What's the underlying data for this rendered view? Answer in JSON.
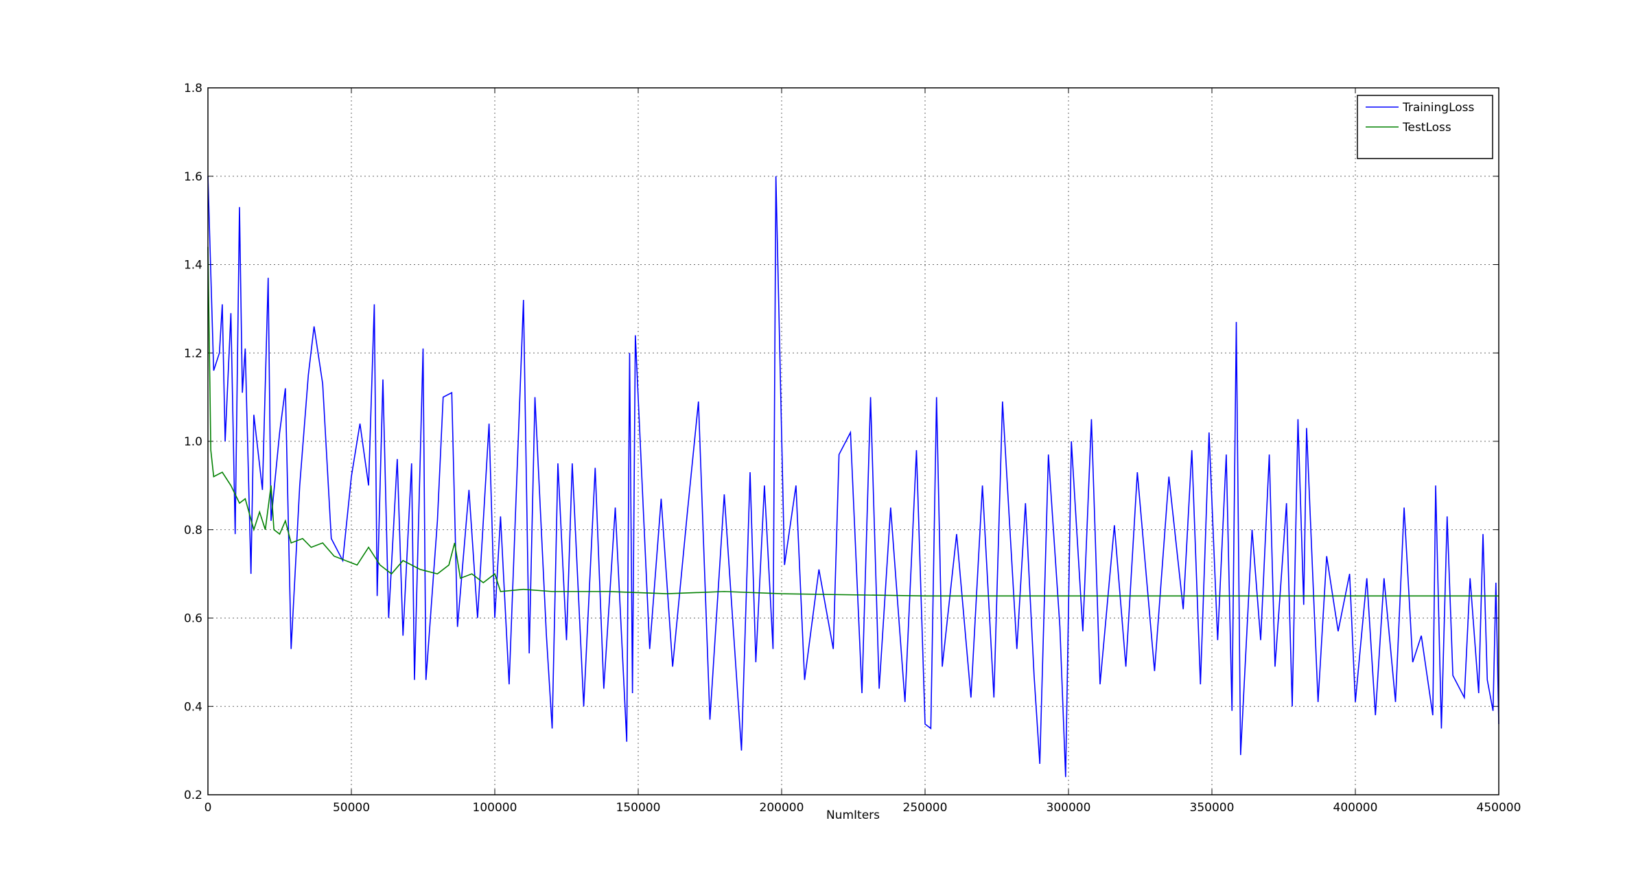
{
  "chart_data": {
    "type": "line",
    "xlabel": "NumIters",
    "xlim": [
      0,
      450000
    ],
    "xticks": [
      0,
      50000,
      100000,
      150000,
      200000,
      250000,
      300000,
      350000,
      400000,
      450000
    ],
    "ylim": [
      0.2,
      1.8
    ],
    "yticks": [
      0.2,
      0.4,
      0.6,
      0.8,
      {
        "value": 1,
        "label": "1.0"
      },
      1.2,
      1.4,
      1.6,
      1.8
    ],
    "grid": true,
    "legend": "upper right",
    "series": [
      {
        "name": "TrainingLoss",
        "color": "#0000ff",
        "x": [
          0,
          2000,
          4000,
          5000,
          6000,
          8000,
          9500,
          11000,
          12000,
          13000,
          15000,
          16000,
          19000,
          21000,
          22000,
          25000,
          27000,
          29000,
          32000,
          35000,
          37000,
          40000,
          43000,
          47000,
          50000,
          53000,
          56000,
          58000,
          59000,
          61000,
          63000,
          66000,
          68000,
          71000,
          72000,
          75000,
          76000,
          80000,
          82000,
          85000,
          87000,
          91000,
          94000,
          98000,
          100000,
          102000,
          105000,
          110000,
          112000,
          114000,
          118000,
          120000,
          122000,
          125000,
          127000,
          131000,
          135000,
          138000,
          142000,
          146000,
          147000,
          148000,
          149000,
          154000,
          158000,
          162000,
          167000,
          171000,
          175000,
          180000,
          186000,
          189000,
          191000,
          194000,
          197000,
          198000,
          201000,
          205000,
          208000,
          213000,
          218000,
          220000,
          224000,
          228000,
          231000,
          234000,
          238000,
          243000,
          247000,
          250000,
          252000,
          254000,
          256000,
          261000,
          266000,
          270000,
          274000,
          277000,
          282000,
          285000,
          288000,
          290000,
          293000,
          297000,
          299000,
          301000,
          305000,
          308000,
          311000,
          316000,
          320000,
          324000,
          330000,
          335000,
          340000,
          343000,
          346000,
          349000,
          352000,
          355000,
          357000,
          358500,
          360000,
          364000,
          367000,
          370000,
          372000,
          376000,
          378000,
          380000,
          382000,
          383000,
          387000,
          390000,
          394000,
          398000,
          400000,
          404000,
          407000,
          410000,
          414000,
          417000,
          420000,
          423000,
          427000,
          428000,
          430000,
          432000,
          434000,
          438000,
          440000,
          443000,
          444500,
          446000,
          448000,
          449000,
          450000
        ],
        "values": [
          1.6,
          1.16,
          1.2,
          1.31,
          1.0,
          1.29,
          0.79,
          1.53,
          1.11,
          1.21,
          0.7,
          1.06,
          0.89,
          1.37,
          0.82,
          1.02,
          1.12,
          0.53,
          0.9,
          1.15,
          1.26,
          1.13,
          0.78,
          0.73,
          0.92,
          1.04,
          0.9,
          1.31,
          0.65,
          1.14,
          0.6,
          0.96,
          0.56,
          0.95,
          0.46,
          1.21,
          0.46,
          0.82,
          1.1,
          1.11,
          0.58,
          0.89,
          0.6,
          1.04,
          0.6,
          0.83,
          0.45,
          1.32,
          0.52,
          1.1,
          0.56,
          0.35,
          0.95,
          0.55,
          0.95,
          0.4,
          0.94,
          0.44,
          0.85,
          0.32,
          1.2,
          0.43,
          1.24,
          0.53,
          0.87,
          0.49,
          0.83,
          1.09,
          0.37,
          0.88,
          0.3,
          0.93,
          0.5,
          0.9,
          0.53,
          1.6,
          0.72,
          0.9,
          0.46,
          0.71,
          0.53,
          0.97,
          1.02,
          0.43,
          1.1,
          0.44,
          0.85,
          0.41,
          0.98,
          0.36,
          0.35,
          1.1,
          0.49,
          0.79,
          0.42,
          0.9,
          0.42,
          1.09,
          0.53,
          0.86,
          0.47,
          0.27,
          0.97,
          0.58,
          0.24,
          1.0,
          0.57,
          1.05,
          0.45,
          0.81,
          0.49,
          0.93,
          0.48,
          0.92,
          0.62,
          0.98,
          0.45,
          1.02,
          0.55,
          0.97,
          0.39,
          1.27,
          0.29,
          0.8,
          0.55,
          0.97,
          0.49,
          0.86,
          0.4,
          1.05,
          0.63,
          1.03,
          0.41,
          0.74,
          0.57,
          0.7,
          0.41,
          0.69,
          0.38,
          0.69,
          0.41,
          0.85,
          0.5,
          0.56,
          0.38,
          0.9,
          0.35,
          0.83,
          0.47,
          0.42,
          0.69,
          0.43,
          0.79,
          0.46,
          0.39,
          0.68,
          0.36
        ]
      },
      {
        "name": "TestLoss",
        "color": "#008000",
        "x": [
          0,
          1000,
          2000,
          5000,
          8000,
          11000,
          13000,
          16000,
          18000,
          20000,
          22000,
          23000,
          25000,
          27000,
          29000,
          33000,
          36000,
          40000,
          44000,
          48000,
          52000,
          56000,
          60000,
          64000,
          68000,
          74000,
          80000,
          84000,
          86000,
          88000,
          92000,
          96000,
          100000,
          102000,
          110000,
          120000,
          140000,
          160000,
          180000,
          200000,
          250000,
          300000,
          350000,
          400000,
          450000
        ],
        "values": [
          1.44,
          0.98,
          0.92,
          0.93,
          0.9,
          0.86,
          0.87,
          0.8,
          0.84,
          0.8,
          0.9,
          0.8,
          0.79,
          0.82,
          0.77,
          0.78,
          0.76,
          0.77,
          0.74,
          0.73,
          0.72,
          0.76,
          0.72,
          0.7,
          0.73,
          0.71,
          0.7,
          0.72,
          0.77,
          0.69,
          0.7,
          0.68,
          0.7,
          0.66,
          0.665,
          0.66,
          0.66,
          0.655,
          0.66,
          0.655,
          0.65,
          0.65,
          0.65,
          0.65,
          0.65
        ]
      }
    ]
  }
}
